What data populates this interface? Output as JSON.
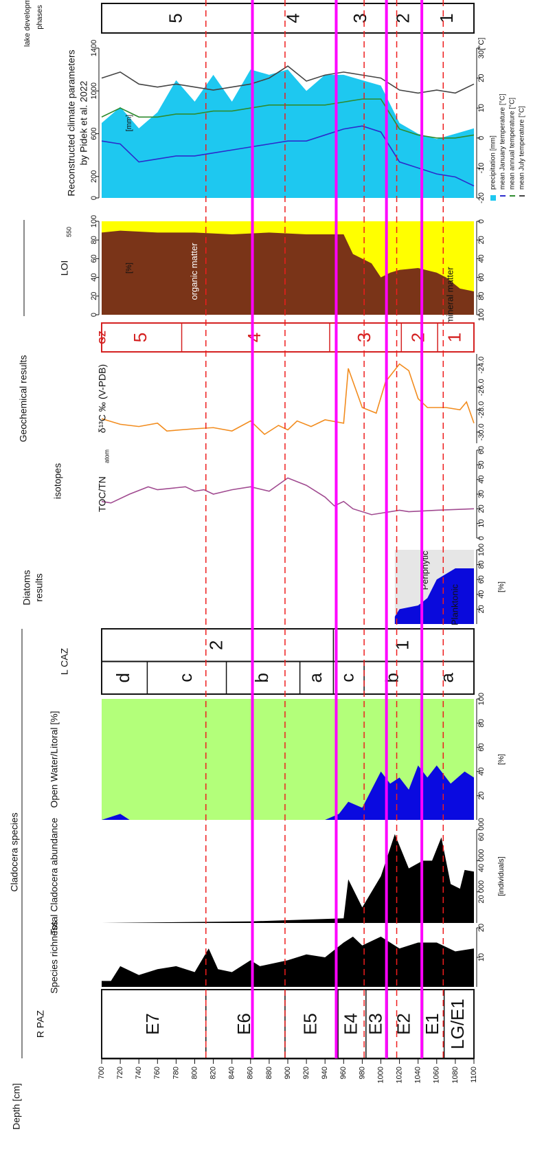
{
  "depth_axis": {
    "label": "Depth [cm]",
    "xlim": [
      700,
      1100
    ],
    "xticks": [
      700,
      720,
      740,
      760,
      780,
      800,
      820,
      840,
      860,
      880,
      900,
      920,
      940,
      960,
      980,
      1000,
      1020,
      1040,
      1060,
      1080,
      1100
    ]
  },
  "headers": {
    "cladocera": "Cladocera species",
    "diatoms": [
      "Diatoms",
      "results"
    ],
    "geochem": "Geochemical results",
    "isotopes": "isotopes"
  },
  "red_lines": [
    812,
    897,
    982,
    1017,
    1067
  ],
  "magenta_lines": [
    862,
    952,
    1006,
    1044
  ],
  "chart_data": [
    {
      "type": "zones",
      "title": [
        "lake development",
        "phases"
      ],
      "color": "#111",
      "rows": [
        {
          "boundaries": [
            862,
            952,
            1006,
            1044
          ],
          "labels": [
            "5",
            "4",
            "3",
            "2",
            "1"
          ]
        }
      ]
    },
    {
      "type": "line",
      "title": [
        "Reconstructed climate parameters",
        "by Pidek et al. 2022"
      ],
      "ylabel": "[mm]",
      "x": [
        700,
        720,
        740,
        760,
        780,
        800,
        820,
        840,
        860,
        880,
        900,
        920,
        940,
        960,
        980,
        1000,
        1020,
        1040,
        1060,
        1080,
        1100
      ],
      "ylim": [
        0,
        1400
      ],
      "yticks": [
        0,
        200,
        600,
        1000,
        1400
      ],
      "y2lim": [
        -20,
        30
      ],
      "y2ticks": [
        -20,
        -10,
        0,
        10,
        20,
        {
          "value": 30,
          "label": "30[°C]"
        }
      ],
      "series": [
        {
          "name": "precipitation [mm]",
          "color": "#1ec8f0",
          "area": true,
          "values": [
            700,
            850,
            650,
            800,
            1100,
            900,
            1150,
            900,
            1200,
            1150,
            1200,
            1000,
            1150,
            1150,
            1100,
            1050,
            700,
            600,
            550,
            600,
            650
          ]
        },
        {
          "name": "mean January temperature [°C]",
          "color": "#2b2bcc",
          "axis": "y2",
          "values": [
            -1,
            -2,
            -8,
            -7,
            -6,
            -6,
            -5,
            -4,
            -3,
            -2,
            -1,
            -1,
            1,
            3,
            4,
            2,
            -8,
            -10,
            -12,
            -13,
            -16
          ]
        },
        {
          "name": "mean annual temperature [°C]",
          "color": "#2e8b2e",
          "axis": "y2",
          "values": [
            7,
            10,
            7,
            7,
            8,
            8,
            9,
            9,
            10,
            11,
            11,
            11,
            11,
            12,
            13,
            13,
            3,
            1,
            0,
            0,
            1
          ]
        },
        {
          "name": "mean July temperature [°C]",
          "color": "#444444",
          "axis": "y2",
          "values": [
            20,
            22,
            18,
            17,
            18,
            17,
            16,
            17,
            18,
            20,
            24,
            19,
            21,
            22,
            21,
            20,
            16,
            15,
            16,
            15,
            18
          ]
        }
      ]
    },
    {
      "type": "area",
      "title": "LOI",
      "title_sub": "550",
      "ylabel": "[%]",
      "background": "#ffff00",
      "x": [
        700,
        720,
        760,
        800,
        840,
        880,
        920,
        960,
        970,
        990,
        1000,
        1010,
        1020,
        1040,
        1060,
        1070,
        1085,
        1100
      ],
      "ylim": [
        0,
        100
      ],
      "yticks": [
        0,
        20,
        40,
        60,
        80,
        100
      ],
      "y2lim": [
        100,
        0
      ],
      "y2ticks": [
        0,
        20,
        40,
        60,
        80,
        100
      ],
      "annotations": [
        "organic matter",
        "mineral matter"
      ],
      "series": [
        {
          "name": "organic matter",
          "color": "#7a3418",
          "values": [
            88,
            90,
            88,
            88,
            86,
            88,
            86,
            86,
            65,
            55,
            40,
            45,
            48,
            50,
            45,
            40,
            28,
            25
          ]
        }
      ]
    },
    {
      "type": "zones",
      "title": "GZ",
      "color": "#d42020",
      "rows": [
        {
          "boundaries": [
            786,
            945,
            1022,
            1061
          ],
          "labels": [
            "5",
            "4",
            "3",
            "2",
            "1"
          ]
        }
      ]
    },
    {
      "type": "line",
      "title": "δ¹³C ‰ (V-PDB)",
      "x": [
        700,
        720,
        740,
        760,
        770,
        800,
        820,
        840,
        860,
        875,
        890,
        900,
        910,
        925,
        940,
        960,
        965,
        980,
        995,
        1005,
        1020,
        1030,
        1040,
        1050,
        1070,
        1085,
        1092,
        1100
      ],
      "ylim": [
        -31,
        -23
      ],
      "yticks": [
        {
          "value": -24,
          "label": "-24.0"
        },
        {
          "value": -26,
          "label": "-26.0"
        },
        {
          "value": -28,
          "label": "-28.0"
        },
        {
          "value": -30,
          "label": "-30.0"
        }
      ],
      "series": [
        {
          "color": "#f28c1e",
          "values": [
            -28.8,
            -29.3,
            -29.5,
            -29.2,
            -29.9,
            -29.7,
            -29.6,
            -29.9,
            -29.0,
            -30.2,
            -29.4,
            -29.8,
            -29.0,
            -29.5,
            -28.9,
            -29.2,
            -24.3,
            -27.8,
            -28.3,
            -25.5,
            -23.9,
            -24.5,
            -27.0,
            -27.8,
            -27.8,
            -28.0,
            -27.3,
            -29.2
          ]
        }
      ]
    },
    {
      "type": "line",
      "title": "TOC/TN",
      "title_sub": "atom",
      "x": [
        700,
        710,
        730,
        750,
        760,
        790,
        800,
        810,
        820,
        840,
        860,
        880,
        900,
        920,
        940,
        950,
        960,
        970,
        990,
        1000,
        1020,
        1030,
        1060,
        1100
      ],
      "ylim": [
        0,
        60
      ],
      "yticks": [
        0,
        10,
        20,
        30,
        40,
        50,
        60
      ],
      "series": [
        {
          "color": "#a04a90",
          "values": [
            25,
            24,
            30,
            35,
            33,
            35,
            32,
            33,
            30,
            33,
            35,
            32,
            41,
            36,
            28,
            22,
            25,
            20,
            16,
            17,
            19,
            18,
            19,
            20
          ]
        }
      ]
    },
    {
      "type": "area",
      "ylabel": "[%]",
      "background": "#e6e6e6",
      "x": [
        1015,
        1020,
        1040,
        1050,
        1060,
        1080,
        1100
      ],
      "ylim": [
        0,
        100
      ],
      "yticks": [
        20,
        40,
        60,
        80,
        100
      ],
      "annotations": [
        "Periphytic",
        "Planktonic"
      ],
      "series": [
        {
          "name": "Planktonic",
          "color": "#0a0adc",
          "values": [
            10,
            20,
            25,
            35,
            60,
            75,
            75
          ]
        }
      ]
    },
    {
      "type": "zones",
      "title": "L CAZ",
      "color": "#111",
      "rows": [
        {
          "boundaries": [
            949
          ],
          "labels": [
            "2",
            "1"
          ]
        },
        {
          "boundaries": [
            749,
            834,
            913,
            949,
            982,
            1045
          ],
          "labels": [
            "d",
            "c",
            "b",
            "a",
            "c",
            "b",
            "a"
          ]
        }
      ]
    },
    {
      "type": "area",
      "title": "Open Water/Litoral [%]",
      "ylabel": "[%]",
      "background": "#b3ff7a",
      "x": [
        700,
        720,
        730,
        940,
        955,
        965,
        980,
        1000,
        1010,
        1020,
        1030,
        1040,
        1050,
        1060,
        1075,
        1090,
        1100
      ],
      "ylim": [
        0,
        100
      ],
      "yticks": [
        20,
        40,
        60,
        80,
        100
      ],
      "series": [
        {
          "color": "#0a0ae0",
          "values": [
            0,
            5,
            0,
            0,
            5,
            15,
            10,
            40,
            30,
            35,
            25,
            45,
            35,
            45,
            30,
            40,
            35
          ]
        }
      ]
    },
    {
      "type": "area",
      "title": "Total Cladocera abundance",
      "ylabel": "[individuals]",
      "x": [
        700,
        860,
        960,
        965,
        980,
        1000,
        1015,
        1030,
        1045,
        1055,
        1065,
        1075,
        1085,
        1090,
        1100
      ],
      "ylim": [
        0,
        60000
      ],
      "yticks": [
        {
          "value": 20000,
          "label": "20 000"
        },
        {
          "value": 40000,
          "label": "40 000"
        },
        {
          "value": 60000,
          "label": "60 000"
        }
      ],
      "series": [
        {
          "color": "#000000",
          "values": [
            0,
            1000,
            3000,
            28000,
            10000,
            30000,
            57000,
            35000,
            40000,
            40000,
            55000,
            25000,
            22000,
            34000,
            33000
          ]
        }
      ]
    },
    {
      "type": "area",
      "title": "Species richness",
      "x": [
        700,
        710,
        720,
        740,
        760,
        780,
        800,
        815,
        825,
        840,
        860,
        870,
        900,
        920,
        940,
        960,
        970,
        980,
        1000,
        1020,
        1040,
        1060,
        1080,
        1100
      ],
      "ylim": [
        0,
        20
      ],
      "yticks": [
        10,
        20
      ],
      "series": [
        {
          "color": "#000000",
          "values": [
            2,
            2,
            7,
            4,
            6,
            7,
            5,
            13,
            6,
            5,
            9,
            7,
            9,
            11,
            10,
            15,
            17,
            14,
            17,
            13,
            15,
            15,
            12,
            13
          ]
        }
      ]
    },
    {
      "type": "zones",
      "title": "R PAZ",
      "color": "#111",
      "rows": [
        {
          "boundaries": [
            812,
            897,
            954,
            984,
            1007,
            1045,
            1068
          ],
          "labels": [
            "E7",
            "E6",
            "E5",
            "E4",
            "E3",
            "E2",
            "E1",
            "LG/E1"
          ]
        }
      ]
    }
  ]
}
